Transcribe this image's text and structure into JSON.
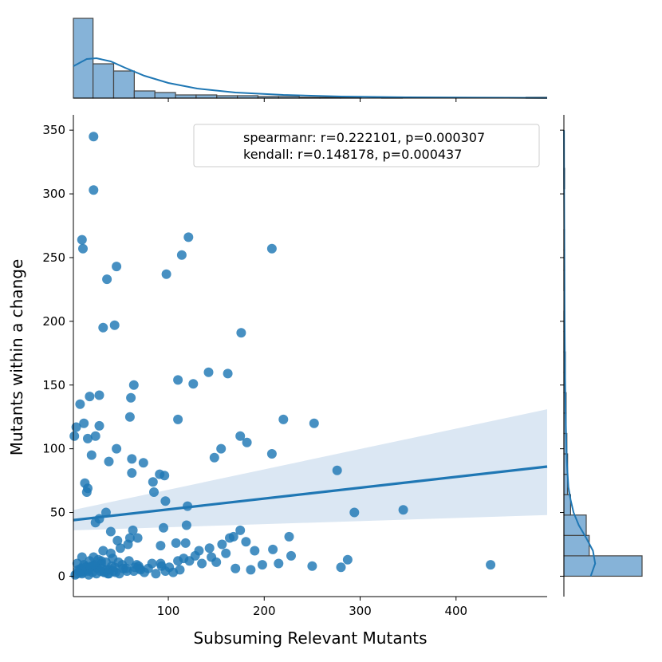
{
  "chart_data": {
    "type": "scatter",
    "xlabel": "Subsuming Relevant Mutants",
    "ylabel": "Mutants within a change",
    "xlim": [
      1,
      495
    ],
    "ylim": [
      -16,
      362
    ],
    "x_ticks": [
      100,
      200,
      300,
      400
    ],
    "y_ticks": [
      0,
      50,
      100,
      150,
      200,
      250,
      300,
      350
    ],
    "legend": {
      "placement": "top-right",
      "entries": [
        "spearmanr: r=0.222101, p=0.000307",
        "kendall: r=0.148178, p=0.000437"
      ]
    },
    "grid": false,
    "colors": {
      "points": "#1f77b4",
      "regression": "#1f77b4",
      "ci_band": "#dbe7f3",
      "hist_fill": "#86b3d8"
    },
    "regression": {
      "x": [
        1,
        495
      ],
      "y": [
        44,
        86
      ],
      "ci_upper": [
        52,
        131
      ],
      "ci_lower": [
        36,
        48
      ]
    },
    "points": {
      "x": [
        22,
        22,
        10,
        11,
        46,
        36,
        98,
        114,
        121,
        208,
        44,
        32,
        176,
        110,
        126,
        142,
        162,
        64,
        28,
        18,
        61,
        220,
        252,
        110,
        12,
        4,
        2,
        16,
        28,
        24,
        60,
        8,
        20,
        38,
        46,
        148,
        155,
        182,
        175,
        208,
        276,
        74,
        62,
        62,
        84,
        96,
        91,
        13,
        16,
        15,
        85,
        97,
        120,
        119,
        95,
        63,
        68,
        58,
        47,
        28,
        35,
        24,
        40,
        60,
        32,
        10,
        5,
        20,
        30,
        40,
        50,
        345,
        294,
        436,
        287,
        209,
        175,
        168,
        181,
        226,
        250,
        280,
        215,
        186,
        164,
        156,
        143,
        128,
        116,
        110,
        92,
        70,
        69,
        64,
        92,
        108,
        118,
        132,
        150,
        6,
        8,
        10,
        12,
        14,
        16,
        18,
        22,
        24,
        26,
        30,
        34,
        36,
        38,
        42,
        44,
        48,
        52,
        56,
        3,
        5,
        7,
        9,
        11,
        13,
        15,
        17,
        19,
        21,
        23,
        25,
        27,
        29,
        31,
        33,
        35,
        37,
        39,
        41,
        43,
        45,
        49,
        53,
        57,
        59,
        65,
        67,
        71,
        75,
        79,
        83,
        87,
        93,
        97,
        101,
        105,
        112,
        122,
        135,
        145,
        160,
        170,
        190,
        198,
        228
      ],
      "y": [
        345,
        303,
        264,
        257,
        243,
        233,
        237,
        252,
        266,
        257,
        197,
        195,
        191,
        154,
        151,
        160,
        159,
        150,
        142,
        141,
        140,
        123,
        120,
        123,
        120,
        117,
        110,
        108,
        118,
        110,
        125,
        135,
        95,
        90,
        100,
        93,
        100,
        105,
        110,
        96,
        83,
        89,
        92,
        81,
        74,
        79,
        80,
        73,
        69,
        66,
        66,
        59,
        55,
        40,
        38,
        36,
        30,
        25,
        28,
        45,
        50,
        42,
        35,
        30,
        20,
        15,
        10,
        8,
        12,
        18,
        22,
        52,
        50,
        9,
        13,
        21,
        36,
        31,
        27,
        31,
        8,
        7,
        10,
        5,
        30,
        25,
        22,
        16,
        14,
        12,
        10,
        6,
        8,
        4,
        24,
        26,
        26,
        20,
        11,
        5,
        3,
        2,
        9,
        7,
        4,
        12,
        15,
        8,
        6,
        10,
        3,
        5,
        2,
        14,
        7,
        11,
        9,
        6,
        1,
        2,
        4,
        6,
        3,
        8,
        5,
        1,
        7,
        3,
        9,
        2,
        13,
        4,
        6,
        3,
        11,
        2,
        5,
        8,
        4,
        3,
        2,
        6,
        4,
        12,
        7,
        9,
        5,
        3,
        6,
        10,
        2,
        8,
        4,
        7,
        3,
        5,
        12,
        10,
        15,
        18,
        6,
        20,
        9,
        16
      ]
    },
    "top_histogram": {
      "bin_edges": [
        0,
        21.5,
        43,
        64.5,
        86,
        107.5,
        129,
        150.5,
        172,
        193.5,
        215,
        236.5,
        258,
        279.5,
        301,
        322.5,
        344,
        365.5,
        387,
        408.5,
        430,
        451.5,
        473,
        494.5
      ],
      "counts": [
        100,
        43,
        34,
        9,
        7,
        4,
        4,
        3,
        3,
        2,
        2,
        1,
        1,
        1,
        0,
        1,
        0,
        0,
        0,
        0,
        0,
        0,
        1
      ],
      "kde_x": [
        1,
        15,
        25,
        40,
        55,
        75,
        100,
        130,
        170,
        220,
        280,
        350,
        420,
        495
      ],
      "kde_y": [
        40,
        49,
        50,
        46,
        38,
        28,
        19,
        12,
        7,
        4,
        2,
        1,
        0.6,
        0.3
      ]
    },
    "right_histogram": {
      "bin_edges": [
        0,
        16,
        32,
        48,
        64,
        80,
        96,
        112,
        128,
        144,
        160,
        176,
        192,
        208,
        224,
        240,
        256,
        272,
        288,
        304,
        320,
        336,
        352
      ],
      "counts": [
        105,
        34,
        30,
        9,
        5,
        5,
        4,
        3,
        3,
        2,
        2,
        1,
        1,
        0,
        1,
        1,
        1,
        0,
        0,
        1,
        0,
        0,
        1
      ],
      "kde_y": [
        0,
        10,
        20,
        30,
        40,
        50,
        60,
        70,
        90,
        110,
        130,
        160,
        200,
        250,
        300,
        350
      ],
      "kde_x": [
        36,
        42,
        39,
        30,
        20,
        13,
        9,
        6,
        4,
        3,
        2.2,
        1.5,
        1,
        0.6,
        0.3,
        0.1
      ]
    }
  }
}
